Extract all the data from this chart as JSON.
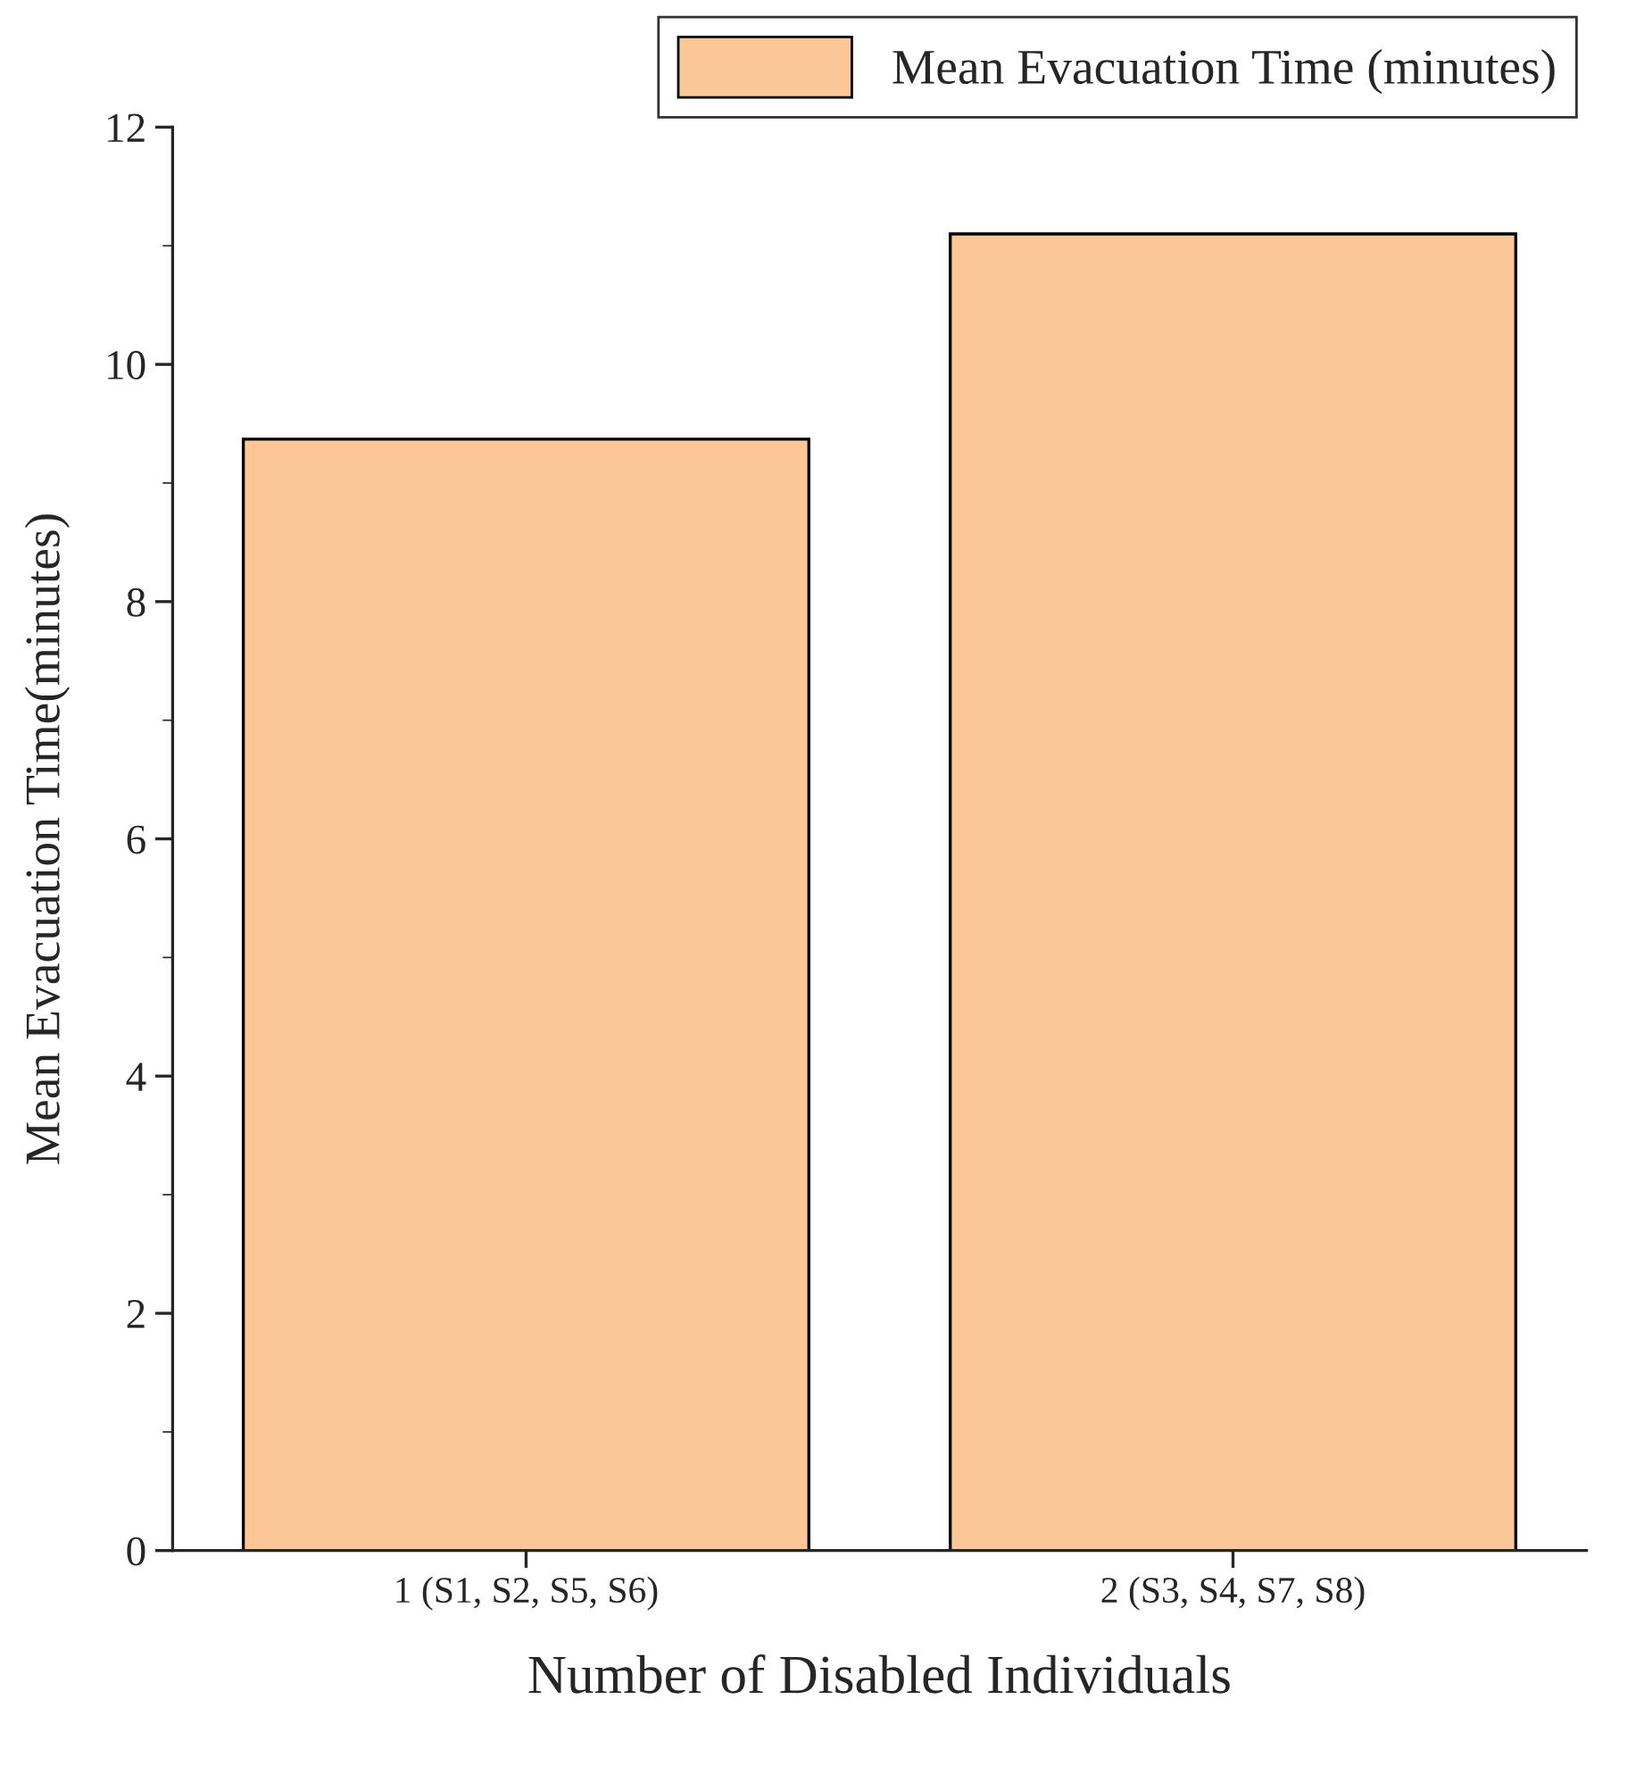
{
  "chart_data": {
    "type": "bar",
    "xlabel": "Number of Disabled Individuals",
    "ylabel": "Mean Evacuation Time(minutes)",
    "categories": [
      "1 (S1, S2, S5, S6)",
      "2 (S3, S4, S7, S8)"
    ],
    "series": [
      {
        "name": "Mean Evacuation Time (minutes)",
        "color": "#fbc797",
        "values": [
          9.37,
          11.1
        ]
      }
    ],
    "ylim": [
      0,
      12
    ],
    "yticks": [
      0,
      2,
      4,
      6,
      8,
      10,
      12
    ],
    "grid": false,
    "legend": "top right"
  }
}
